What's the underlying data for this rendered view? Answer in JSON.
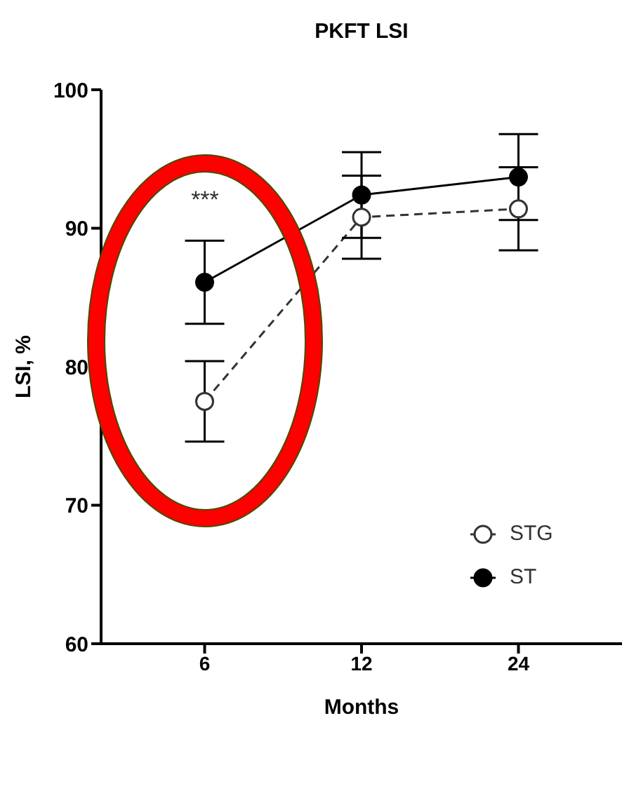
{
  "chart_data": {
    "type": "line",
    "title": "PKFT LSI",
    "xlabel": "Months",
    "ylabel": "LSI, %",
    "categories": [
      "6",
      "12",
      "24"
    ],
    "series": [
      {
        "name": "STG",
        "color": "#333333",
        "values": [
          77.5,
          90.8,
          91.4
        ],
        "errors": [
          2.9,
          3.0,
          3.0
        ],
        "line_style": "dashed"
      },
      {
        "name": "ST",
        "color": "#000000",
        "values": [
          86.1,
          92.4,
          93.7
        ],
        "errors": [
          3.0,
          3.1,
          3.1
        ],
        "line_style": "solid"
      }
    ],
    "ylim": [
      60,
      100
    ],
    "yticks": [
      60,
      70,
      80,
      90,
      100
    ],
    "grid": false,
    "legend": "bottom right",
    "marker": "circle",
    "annotations": [
      "***"
    ]
  }
}
